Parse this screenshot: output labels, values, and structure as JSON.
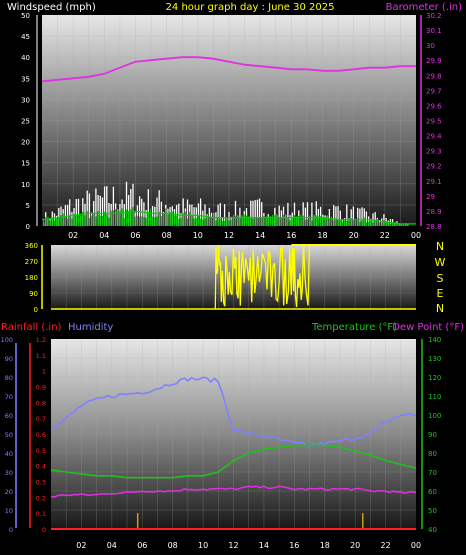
{
  "header": {
    "wind_title": "Windspeed (mph)",
    "date_title": "24 hour graph day : June 30 2025",
    "baro_title": "Barometer (.in)"
  },
  "bottom_header": {
    "rain_title": "Rainfall (.in)",
    "humidity_title": "Humidity",
    "temp_title": "Temperature (°F)",
    "dew_title": "Dew Point (°F)"
  },
  "x_ticks": [
    "02",
    "04",
    "06",
    "08",
    "10",
    "12",
    "14",
    "16",
    "18",
    "20",
    "22",
    "00"
  ],
  "direction_labels": [
    "N",
    "W",
    "S",
    "E",
    "N"
  ],
  "colors": {
    "wind": "#ffffff",
    "gust": "#00d000",
    "barometer": "#e030e0",
    "direction": "#ffff00",
    "humidity": "#8080ff",
    "temperature": "#20c020",
    "dewpoint": "#e030e0",
    "rainfall": "#ff2020",
    "rain_events": "#c8a000",
    "titles_yellow": "#ffff00"
  },
  "chart_data": [
    {
      "type": "line",
      "title": "24 hour graph day : June 30 2025",
      "x_label": "",
      "x_range": [
        0,
        24
      ],
      "y_left": {
        "label": "Windspeed (mph)",
        "range": [
          0,
          50
        ],
        "ticks": [
          "0",
          "5",
          "10",
          "15",
          "20",
          "25",
          "30",
          "35",
          "40",
          "45",
          "50"
        ]
      },
      "y_right": {
        "label": "Barometer (.in)",
        "range": [
          28.8,
          30.2
        ],
        "ticks": [
          "28.8",
          "28.9",
          "29",
          "29.1",
          "29.2",
          "29.3",
          "29.4",
          "29.5",
          "29.6",
          "29.7",
          "29.8",
          "29.9",
          "30",
          "30.1",
          "30.2"
        ]
      },
      "grid": true,
      "series": [
        {
          "name": "Barometer (.in)",
          "axis": "right",
          "x": [
            0,
            1,
            2,
            3,
            4,
            5,
            6,
            7,
            8,
            9,
            10,
            11,
            12,
            13,
            14,
            15,
            16,
            17,
            18,
            19,
            20,
            21,
            22,
            23,
            24
          ],
          "values": [
            29.76,
            29.77,
            29.78,
            29.79,
            29.81,
            29.85,
            29.89,
            29.9,
            29.91,
            29.92,
            29.92,
            29.91,
            29.89,
            29.87,
            29.86,
            29.85,
            29.84,
            29.84,
            29.83,
            29.83,
            29.84,
            29.85,
            29.85,
            29.86,
            29.86
          ]
        }
      ],
      "wind": {
        "avg_x": [
          0,
          1,
          2,
          3,
          4,
          5,
          6,
          7,
          8,
          9,
          10,
          11,
          12,
          13,
          14,
          15,
          16,
          17,
          18,
          19,
          20,
          21,
          22,
          23,
          24
        ],
        "avg_values": [
          1.5,
          2,
          2.5,
          3,
          3,
          3,
          3.5,
          3,
          3,
          2.5,
          2.5,
          2,
          2,
          2,
          2,
          2,
          2,
          2,
          2,
          1.5,
          1.5,
          1.5,
          1,
          0.5,
          0.5
        ],
        "peak_x": [
          0,
          1,
          2,
          3,
          4,
          5,
          6,
          7,
          8,
          9,
          10,
          11,
          12,
          13,
          14,
          15,
          16,
          17,
          18,
          19,
          20,
          21,
          22,
          23,
          24
        ],
        "peak_values": [
          3,
          5,
          8,
          9,
          10,
          11,
          11,
          9,
          9,
          7,
          7,
          6,
          6,
          6,
          7,
          6,
          6,
          6,
          6,
          6,
          5,
          4,
          3,
          1,
          0
        ]
      }
    },
    {
      "type": "line",
      "title": "",
      "x_range": [
        0,
        24
      ],
      "y_left": {
        "label": "",
        "range": [
          0,
          360
        ],
        "ticks": [
          "0",
          "90",
          "180",
          "270",
          "360"
        ]
      },
      "grid": true,
      "series": [
        {
          "name": "Wind Direction",
          "axis": "left",
          "x": [
            10.8,
            11.0,
            11.2,
            11.5,
            11.8,
            12.0,
            12.3,
            12.6,
            13.0,
            13.4,
            13.8,
            14.2,
            14.6,
            15.0,
            15.4,
            15.8,
            16.0,
            16.3,
            16.6,
            17.0
          ],
          "values": [
            0,
            360,
            40,
            300,
            100,
            340,
            60,
            320,
            160,
            90,
            200,
            110,
            240,
            150,
            280,
            80,
            340,
            120,
            360,
            360
          ]
        }
      ]
    },
    {
      "type": "line",
      "title": "",
      "x_range": [
        0,
        24
      ],
      "y_left_humidity": {
        "label": "Humidity",
        "range": [
          0,
          100
        ],
        "ticks": [
          "0",
          "10",
          "20",
          "30",
          "40",
          "50",
          "60",
          "70",
          "80",
          "90",
          "100"
        ]
      },
      "y_left_rain": {
        "label": "Rainfall (.in)",
        "range": [
          0,
          1.2
        ],
        "ticks": [
          "0",
          "0.1",
          "0.2",
          "0.3",
          "0.4",
          "0.5",
          "0.6",
          "0.7",
          "0.8",
          "0.9",
          "1",
          "1.1",
          "1.2"
        ]
      },
      "y_right": {
        "label": "Temperature (°F)",
        "range": [
          40,
          140
        ],
        "ticks": [
          "40",
          "50",
          "60",
          "70",
          "80",
          "90",
          "100",
          "110",
          "120",
          "130",
          "140"
        ]
      },
      "grid": true,
      "series": [
        {
          "name": "Humidity",
          "axis": "humidity",
          "x": [
            0,
            1,
            2,
            3,
            4,
            5,
            6,
            7,
            8,
            9,
            10,
            11,
            12,
            13,
            14,
            15,
            16,
            17,
            18,
            19,
            20,
            21,
            22,
            23,
            24
          ],
          "values": [
            53,
            58,
            65,
            68,
            70,
            71,
            72,
            74,
            77,
            79,
            79,
            78,
            52,
            50,
            49,
            47,
            45,
            44,
            45,
            46,
            48,
            50,
            56,
            60,
            60
          ]
        },
        {
          "name": "Temperature (°F)",
          "axis": "right",
          "x": [
            0,
            1,
            2,
            3,
            4,
            5,
            6,
            7,
            8,
            9,
            10,
            11,
            12,
            13,
            14,
            15,
            16,
            17,
            18,
            19,
            20,
            21,
            22,
            23,
            24
          ],
          "values": [
            71,
            70,
            69,
            68,
            68,
            67,
            67,
            67,
            67,
            68,
            68,
            70,
            76,
            80,
            82,
            83,
            84,
            84,
            84,
            83,
            81,
            79,
            76,
            74,
            72
          ]
        },
        {
          "name": "Dew Point (°F)",
          "axis": "right",
          "x": [
            0,
            1,
            2,
            3,
            4,
            5,
            6,
            7,
            8,
            9,
            10,
            11,
            12,
            13,
            14,
            15,
            16,
            17,
            18,
            19,
            20,
            21,
            22,
            23,
            24
          ],
          "values": [
            57,
            58,
            58,
            58,
            59,
            59,
            60,
            60,
            60,
            61,
            61,
            61,
            61,
            62,
            62,
            62,
            61,
            61,
            61,
            61,
            61,
            60,
            60,
            59,
            59
          ]
        },
        {
          "name": "Rainfall (.in)",
          "axis": "rain",
          "x": [
            0,
            24
          ],
          "values": [
            0,
            0
          ]
        }
      ],
      "rain_events_x": [
        5.7,
        20.5
      ]
    }
  ]
}
